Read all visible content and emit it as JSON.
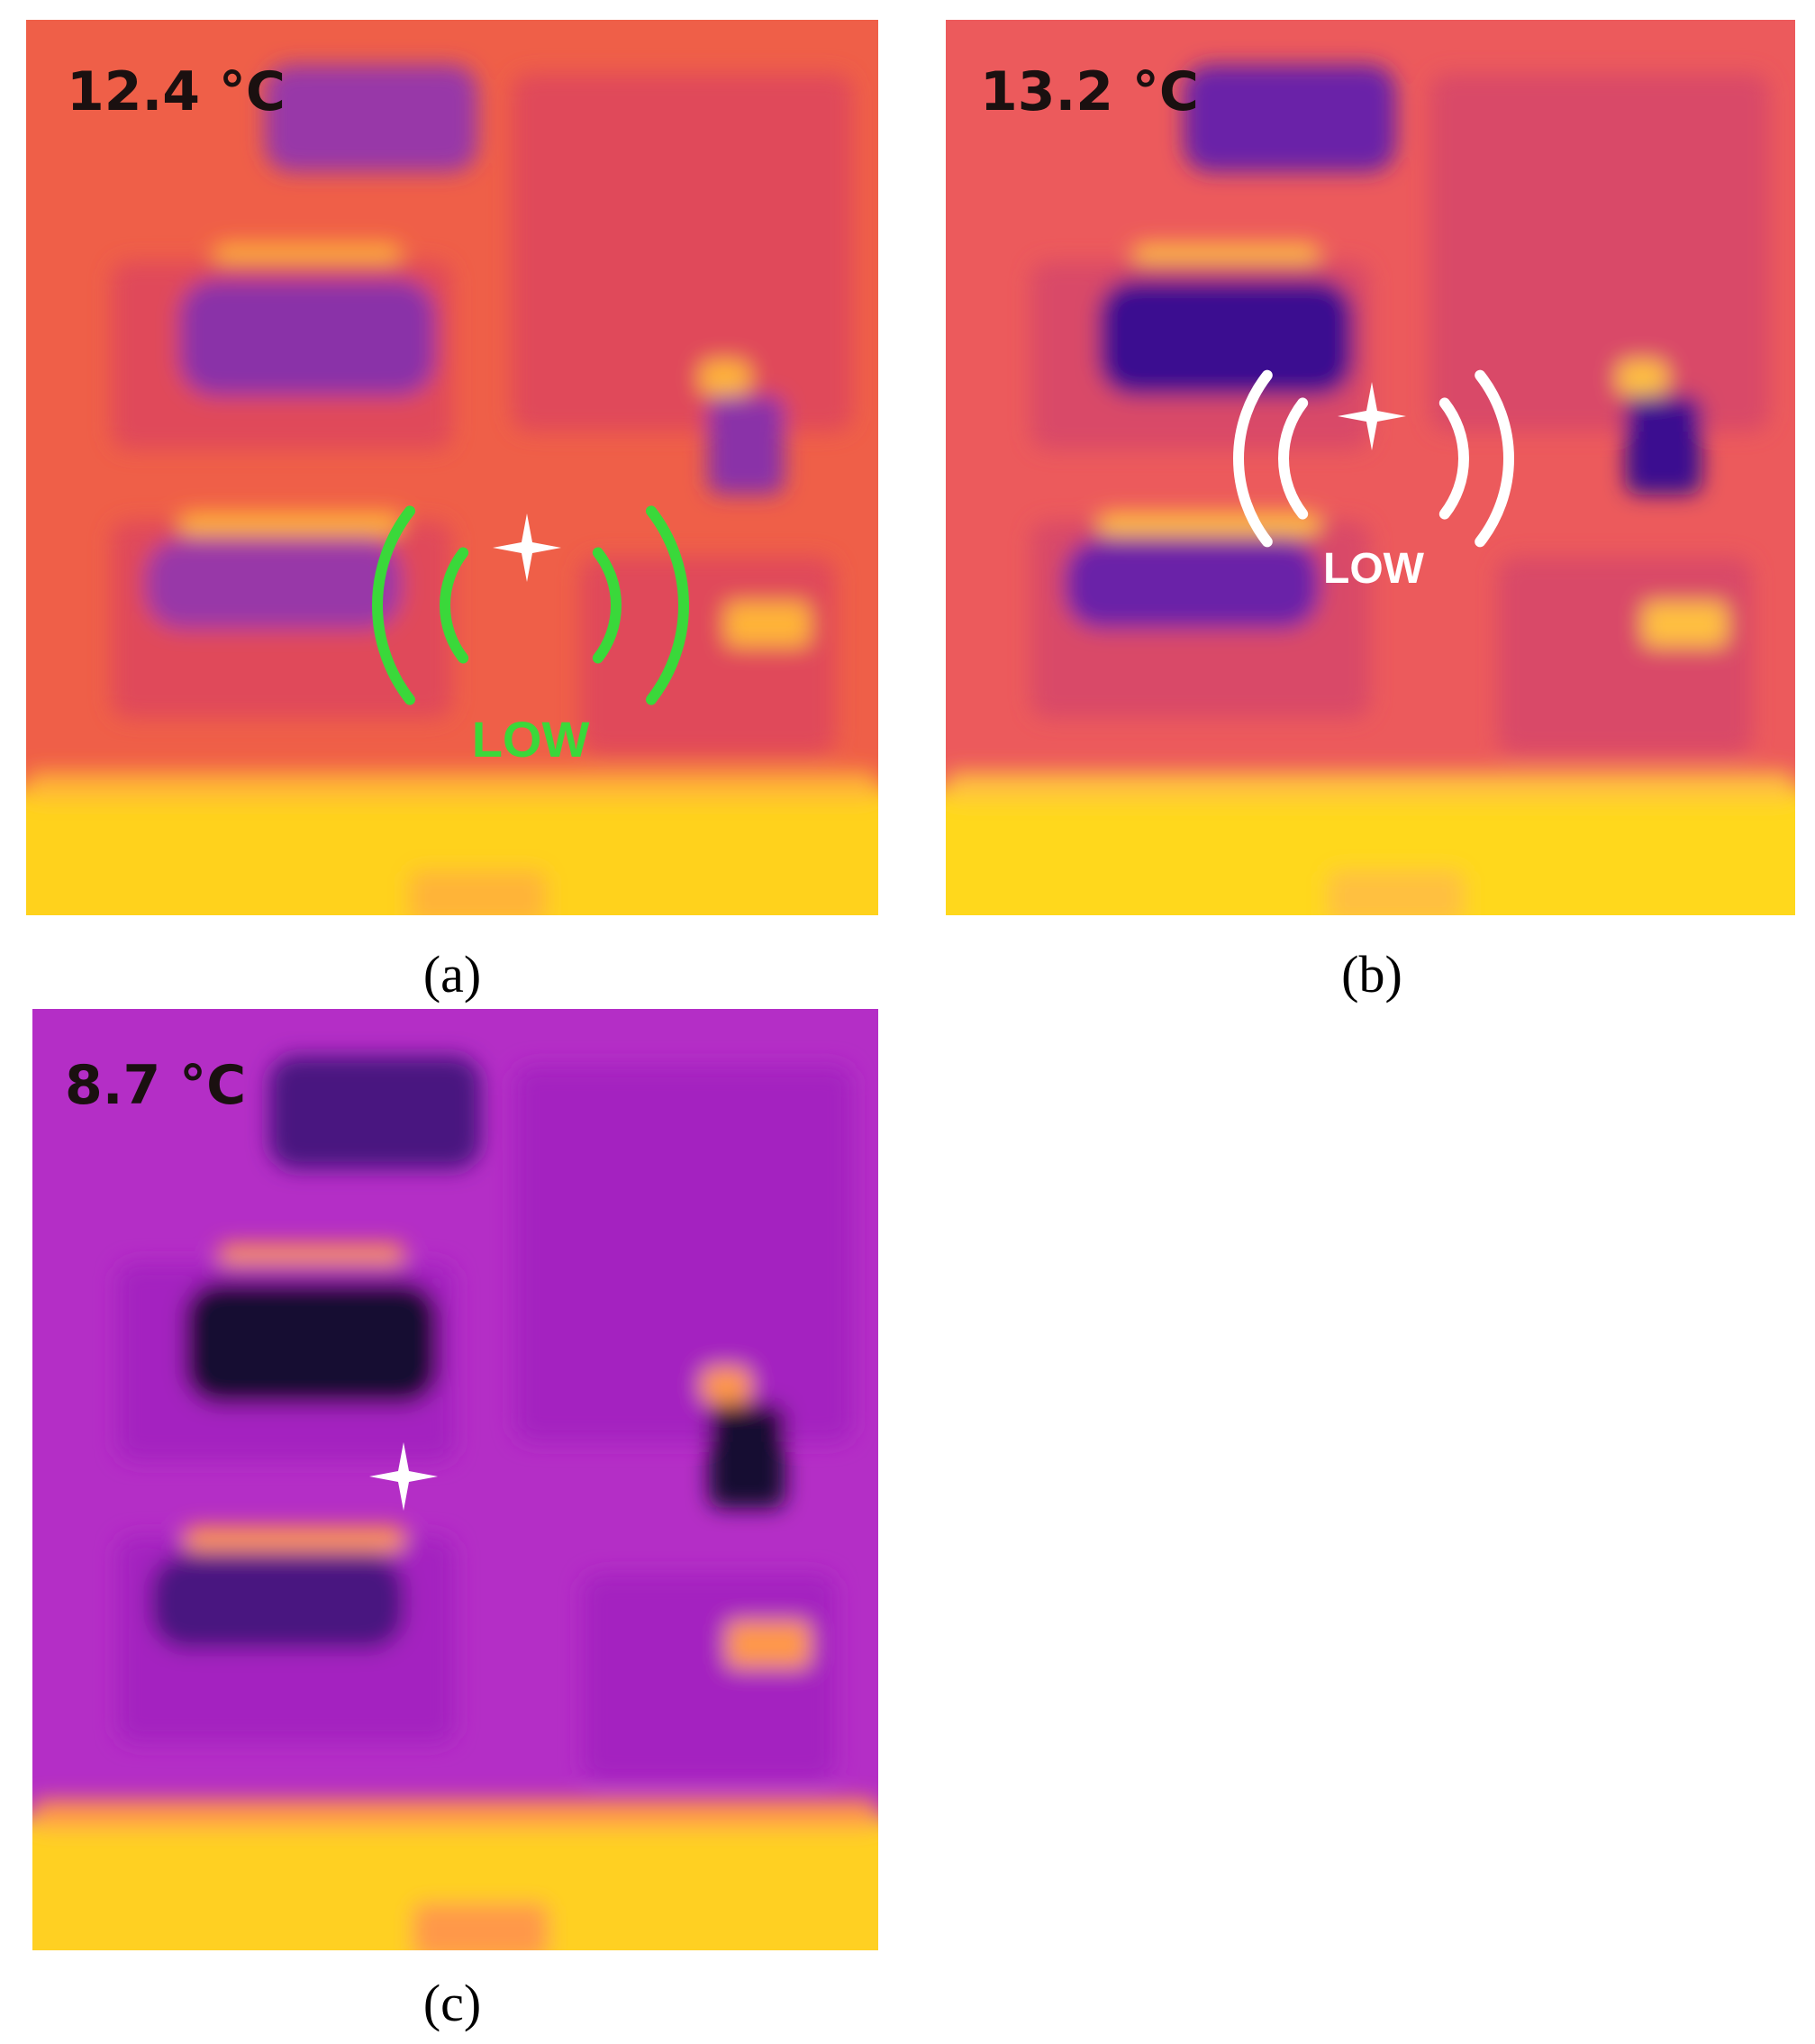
{
  "panels": [
    {
      "temperature": "12.4 °C",
      "indicator": "LOW",
      "caption": "(a)"
    },
    {
      "temperature": "13.2 °C",
      "indicator": "LOW",
      "caption": "(b)"
    },
    {
      "temperature": "8.7 °C",
      "caption": "(c)"
    }
  ]
}
